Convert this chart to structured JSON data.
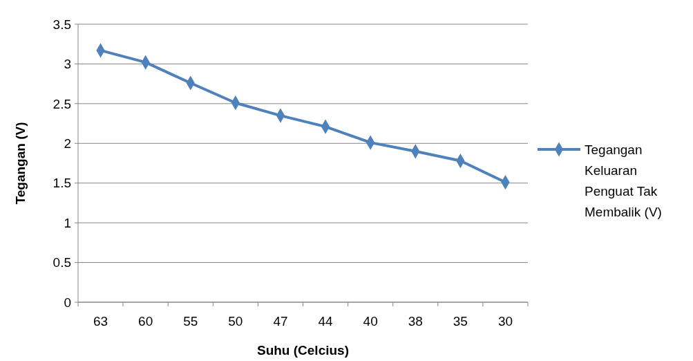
{
  "chart_data": {
    "type": "line",
    "xlabel": "Suhu (Celcius)",
    "ylabel": "Tegangan (V)",
    "categories": [
      "63",
      "60",
      "55",
      "50",
      "47",
      "44",
      "40",
      "38",
      "35",
      "30"
    ],
    "series": [
      {
        "name": "Tegangan Keluaran Penguat Tak Membalik (V)",
        "color": "#4f81bd",
        "values": [
          3.17,
          3.02,
          2.76,
          2.51,
          2.35,
          2.21,
          2.01,
          1.9,
          1.78,
          1.51
        ]
      }
    ],
    "ylim": [
      0,
      3.5
    ],
    "yticks": [
      0,
      0.5,
      1,
      1.5,
      2,
      2.5,
      3,
      3.5
    ],
    "grid": "y",
    "legend": "right",
    "marker": "diamond",
    "line_style": "solid"
  }
}
